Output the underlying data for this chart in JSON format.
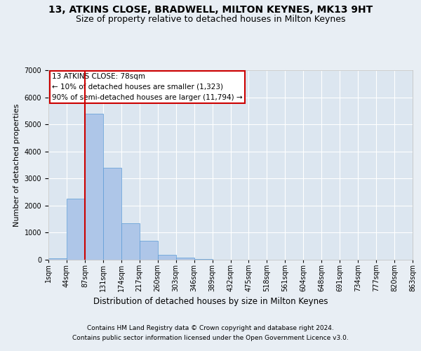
{
  "title": "13, ATKINS CLOSE, BRADWELL, MILTON KEYNES, MK13 9HT",
  "subtitle": "Size of property relative to detached houses in Milton Keynes",
  "xlabel": "Distribution of detached houses by size in Milton Keynes",
  "ylabel": "Number of detached properties",
  "footer_line1": "Contains HM Land Registry data © Crown copyright and database right 2024.",
  "footer_line2": "Contains public sector information licensed under the Open Government Licence v3.0.",
  "annotation_title": "13 ATKINS CLOSE: 78sqm",
  "annotation_line1": "← 10% of detached houses are smaller (1,323)",
  "annotation_line2": "90% of semi-detached houses are larger (11,794) →",
  "bar_values": [
    50,
    2250,
    5400,
    3400,
    1350,
    700,
    175,
    90,
    35,
    5,
    2,
    1,
    1,
    0,
    0,
    0,
    0,
    0,
    0,
    0
  ],
  "bar_labels": [
    "1sqm",
    "44sqm",
    "87sqm",
    "131sqm",
    "174sqm",
    "217sqm",
    "260sqm",
    "303sqm",
    "346sqm",
    "389sqm",
    "432sqm",
    "475sqm",
    "518sqm",
    "561sqm",
    "604sqm",
    "648sqm",
    "691sqm",
    "734sqm",
    "777sqm",
    "820sqm",
    "863sqm"
  ],
  "bar_color": "#aec6e8",
  "bar_edge_color": "#5b9bd5",
  "vline_color": "#cc0000",
  "annotation_box_color": "#cc0000",
  "ylim": [
    0,
    7000
  ],
  "yticks": [
    0,
    1000,
    2000,
    3000,
    4000,
    5000,
    6000,
    7000
  ],
  "bg_color": "#e8eef4",
  "plot_bg_color": "#dce6f0",
  "grid_color": "#ffffff",
  "title_fontsize": 10,
  "subtitle_fontsize": 9,
  "xlabel_fontsize": 8.5,
  "ylabel_fontsize": 8,
  "tick_fontsize": 7,
  "footer_fontsize": 6.5,
  "annotation_fontsize": 7.5
}
